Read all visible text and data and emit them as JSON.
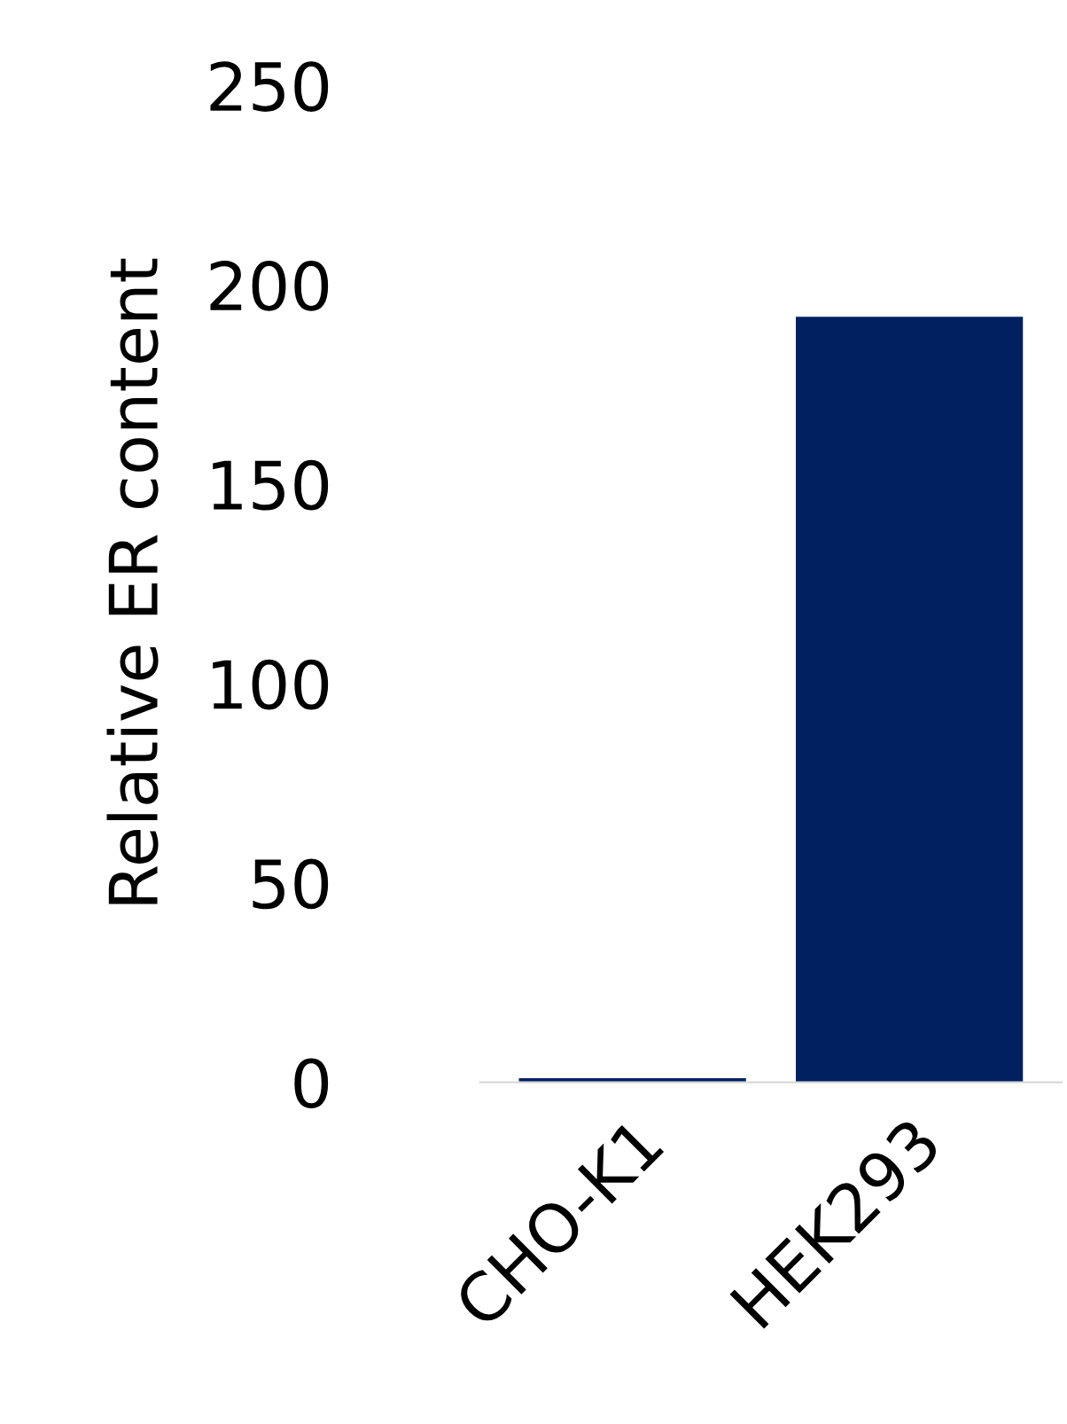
{
  "chart_data": {
    "type": "bar",
    "ylabel": "Relative ER content",
    "categories": [
      "CHO-K1",
      "HEK293"
    ],
    "values": [
      1,
      192
    ],
    "color": "#002060",
    "ylim": [
      0,
      250
    ],
    "yticks": [
      0,
      50,
      100,
      150,
      200,
      250
    ],
    "grid": false,
    "legend": false
  }
}
